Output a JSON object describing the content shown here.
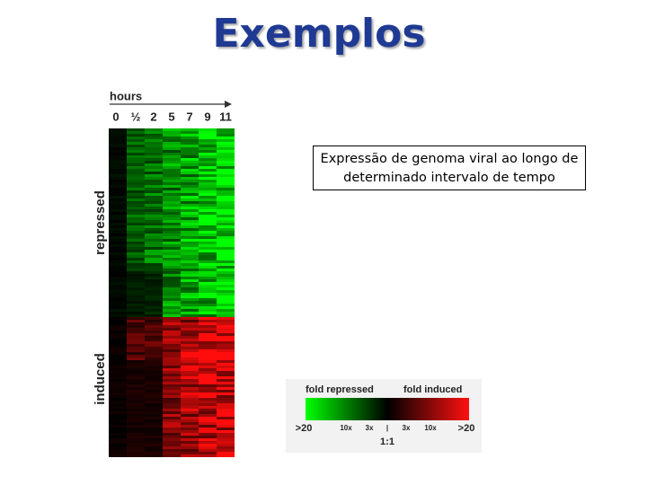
{
  "title": "Exemplos",
  "caption": "Expressão de genoma viral ao longo de determinado intervalo de tempo",
  "heatmap": {
    "axis_label": "hours",
    "columns": [
      "0",
      "½",
      "2",
      "5",
      "7",
      "9",
      "11"
    ],
    "row_groups": [
      "repressed",
      "induced"
    ]
  },
  "legend": {
    "left_label": "fold repressed",
    "right_label": "fold induced",
    "scale": [
      ">20",
      "10x",
      "3x",
      "|",
      "3x",
      "10x",
      ">20"
    ],
    "center": "1:1"
  }
}
